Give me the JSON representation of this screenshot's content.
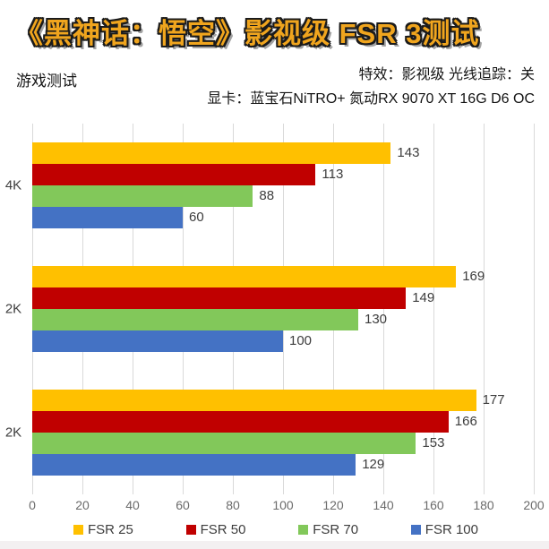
{
  "page": {
    "background": "#ffffff"
  },
  "header": {
    "title": "《黑神话：悟空》影视级 FSR 3测试",
    "title_fill_color": "#F0A51E",
    "title_outline_color": "#1b1b1b",
    "subtitle_left": "游戏测试",
    "info_line1": "特效：影视级 光线追踪：关",
    "info_line2": "显卡：蓝宝石NiTRO+ 氮动RX 9070 XT 16G D6 OC"
  },
  "chart_data": {
    "type": "bar",
    "orientation": "horizontal",
    "title": "《黑神话：悟空》影视级 FSR 3测试",
    "categories": [
      "4K",
      "2K",
      "2K"
    ],
    "series": [
      {
        "name": "FSR 25",
        "color": "#FFC000",
        "values": [
          143,
          169,
          177
        ]
      },
      {
        "name": "FSR 50",
        "color": "#C00000",
        "values": [
          113,
          149,
          166
        ]
      },
      {
        "name": "FSR 70",
        "color": "#82C85A",
        "values": [
          88,
          130,
          153
        ]
      },
      {
        "name": "FSR 100",
        "color": "#4472C4",
        "values": [
          60,
          100,
          129
        ]
      }
    ],
    "xlabel": "",
    "ylabel": "",
    "xlim": [
      0,
      200
    ],
    "x_ticks": [
      0,
      20,
      40,
      60,
      80,
      100,
      120,
      140,
      160,
      180,
      200
    ],
    "grid": true,
    "gridline_color": "#d9d9d9",
    "value_labels": true,
    "value_label_color": "#3d3d3d",
    "legend_position": "bottom"
  }
}
